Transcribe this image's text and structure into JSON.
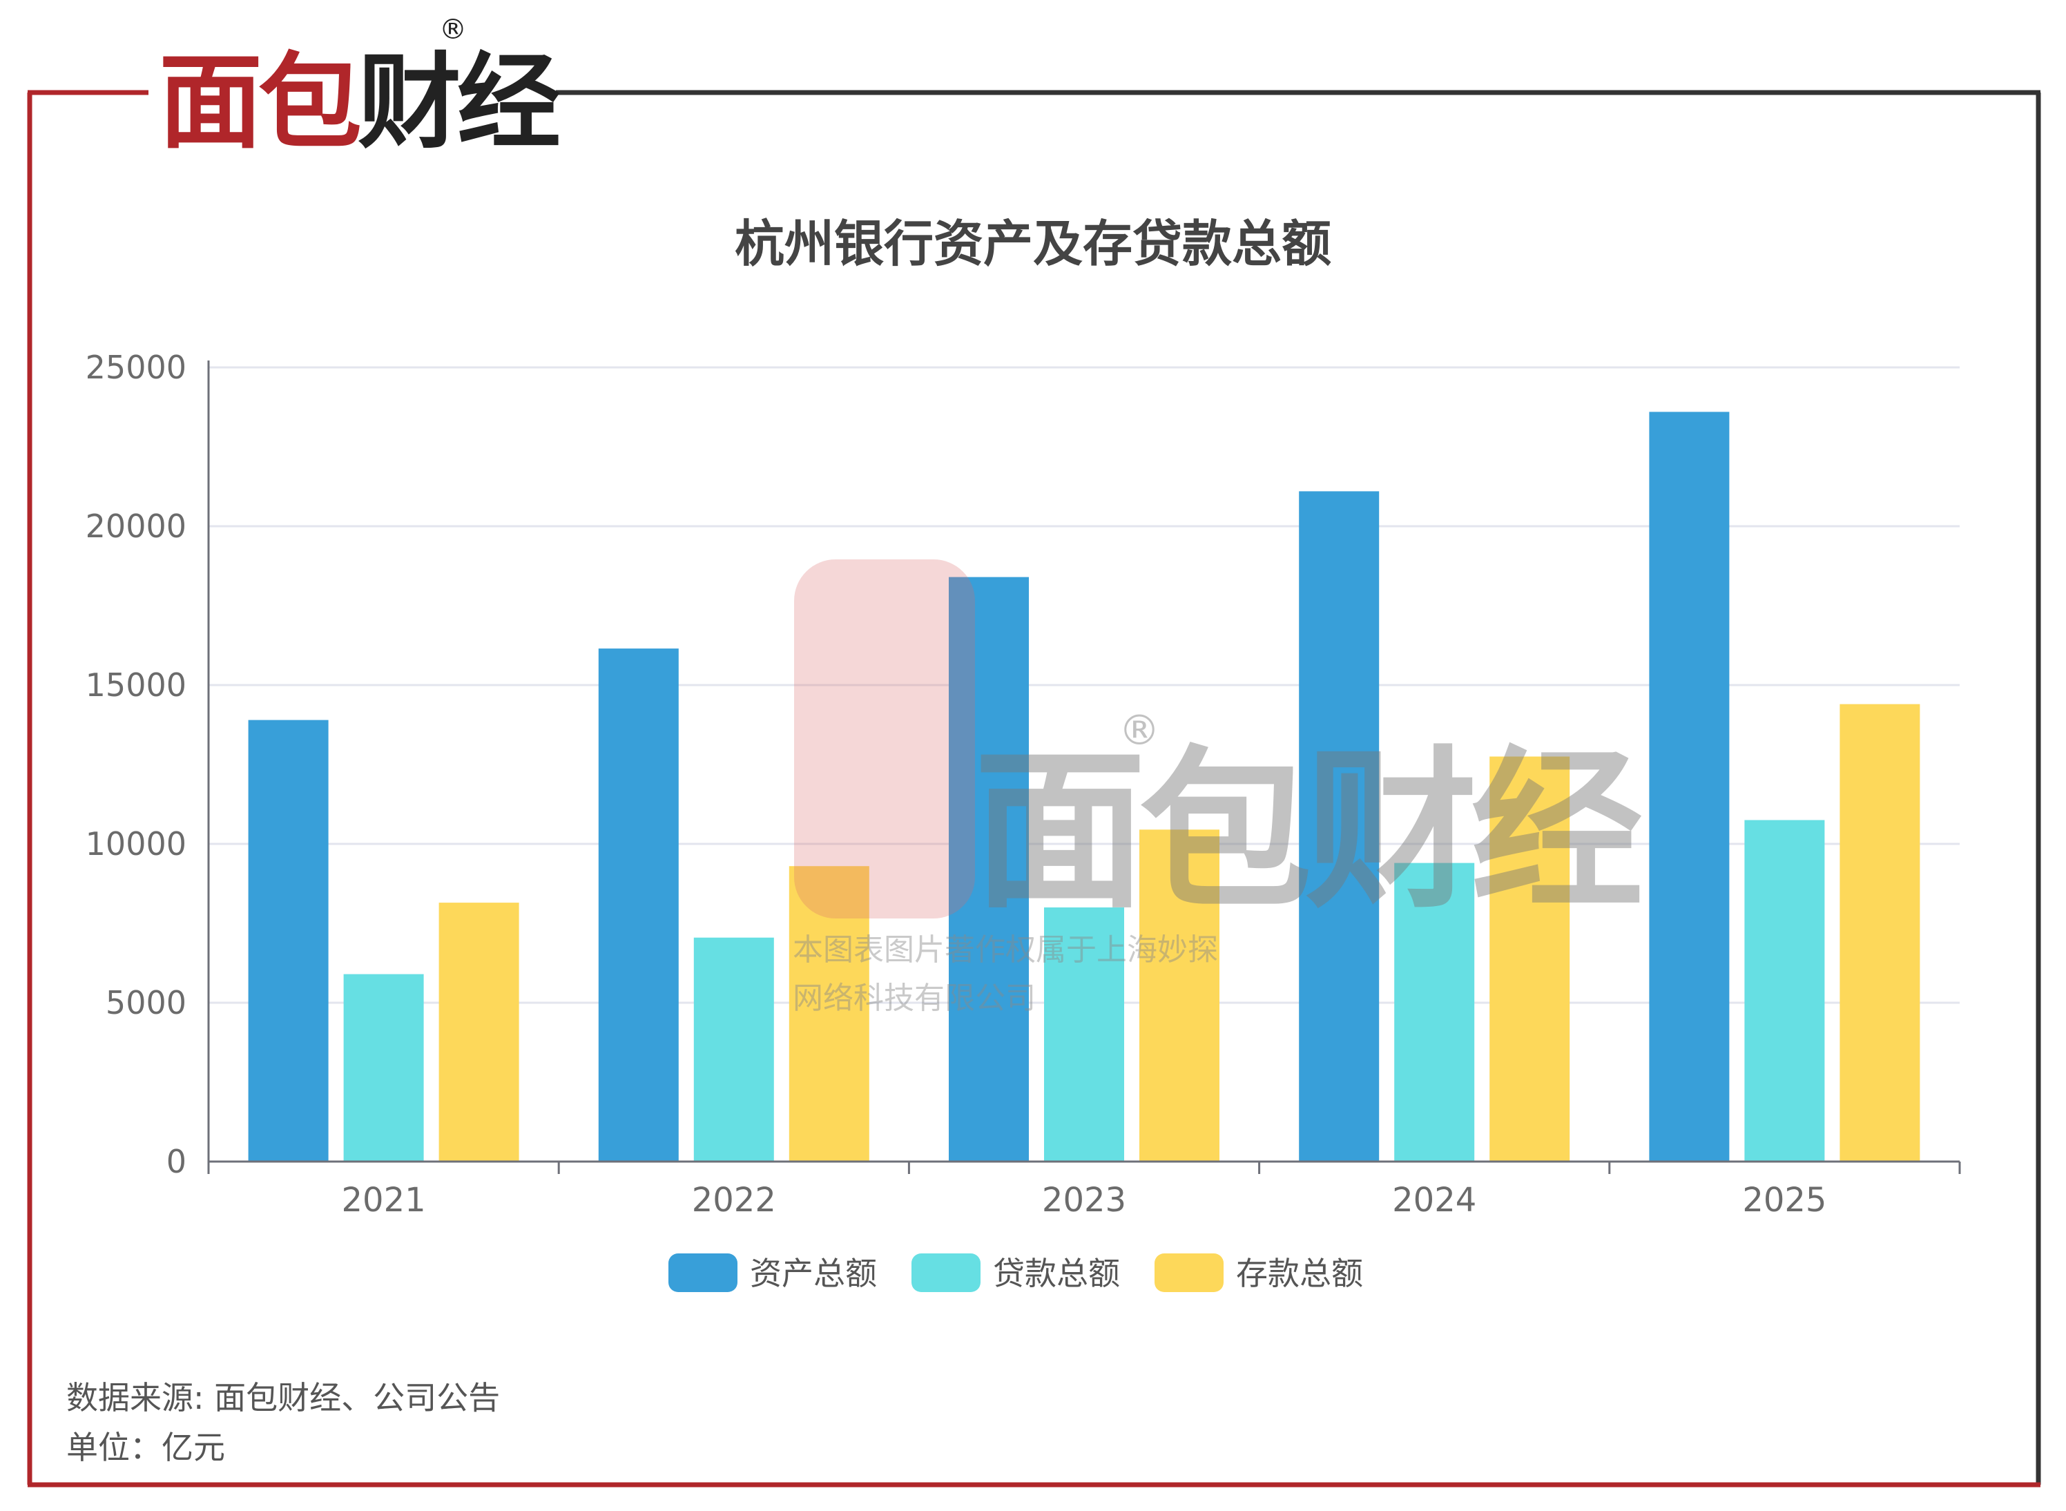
{
  "brand": {
    "logo_text": "面包财经",
    "registered_mark": "®",
    "color_red": "#b0262a",
    "color_dark": "#222222"
  },
  "watermark": {
    "logo_text": "面包财经",
    "registered_mark": "®",
    "line1": "本图表图片著作权属于上海妙探",
    "line2": "网络科技有限公司"
  },
  "chart_data": {
    "type": "bar",
    "title": "杭州银行资产及存贷款总额",
    "categories": [
      "2021",
      "2022",
      "2023",
      "2024",
      "2025"
    ],
    "series": [
      {
        "name": "资产总额",
        "color": "#389fd9",
        "values": [
          13900,
          16150,
          18400,
          21100,
          23600
        ]
      },
      {
        "name": "贷款总额",
        "color": "#66dfe3",
        "values": [
          5900,
          7050,
          8000,
          9400,
          10750
        ]
      },
      {
        "name": "存款总额",
        "color": "#fdd85a",
        "values": [
          8150,
          9300,
          10450,
          12750,
          14400
        ]
      }
    ],
    "ylim": [
      0,
      25000
    ],
    "yticks": [
      0,
      5000,
      10000,
      15000,
      20000,
      25000
    ],
    "grid": true,
    "legend_position": "bottom-center"
  },
  "footer": {
    "source": "数据来源: 面包财经、公司公告",
    "unit": "单位：亿元"
  }
}
